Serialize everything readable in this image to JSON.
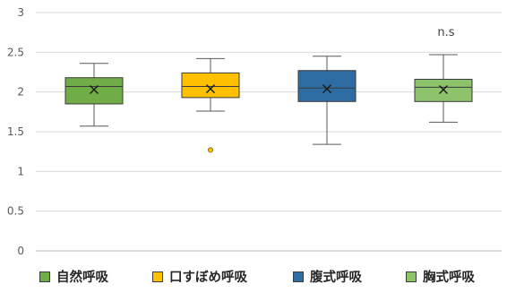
{
  "chart_data": {
    "type": "boxplot",
    "title": "",
    "xlabel": "",
    "ylabel": "",
    "ylim": [
      0,
      3
    ],
    "yticks": [
      "0",
      "0.5",
      "1",
      "1.5",
      "2",
      "2.5",
      "3"
    ],
    "grid": true,
    "legend_position": "bottom",
    "annotation": "n.s",
    "series": [
      {
        "name": "自然呼吸",
        "color": "#70AD47",
        "min": 1.57,
        "q1": 1.85,
        "median": 2.07,
        "q3": 2.18,
        "max": 2.36,
        "mean": 2.03,
        "outliers": []
      },
      {
        "name": "口すぼめ呼吸",
        "color": "#FFC000",
        "min": 1.76,
        "q1": 1.93,
        "median": 2.07,
        "q3": 2.24,
        "max": 2.42,
        "mean": 2.04,
        "outliers": [
          1.27
        ]
      },
      {
        "name": "腹式呼吸",
        "color": "#2E6DA4",
        "min": 1.34,
        "q1": 1.88,
        "median": 2.05,
        "q3": 2.27,
        "max": 2.45,
        "mean": 2.04,
        "outliers": []
      },
      {
        "name": "胸式呼吸",
        "color": "#8CC36B",
        "min": 1.62,
        "q1": 1.88,
        "median": 2.06,
        "q3": 2.16,
        "max": 2.47,
        "mean": 2.03,
        "outliers": []
      }
    ]
  }
}
